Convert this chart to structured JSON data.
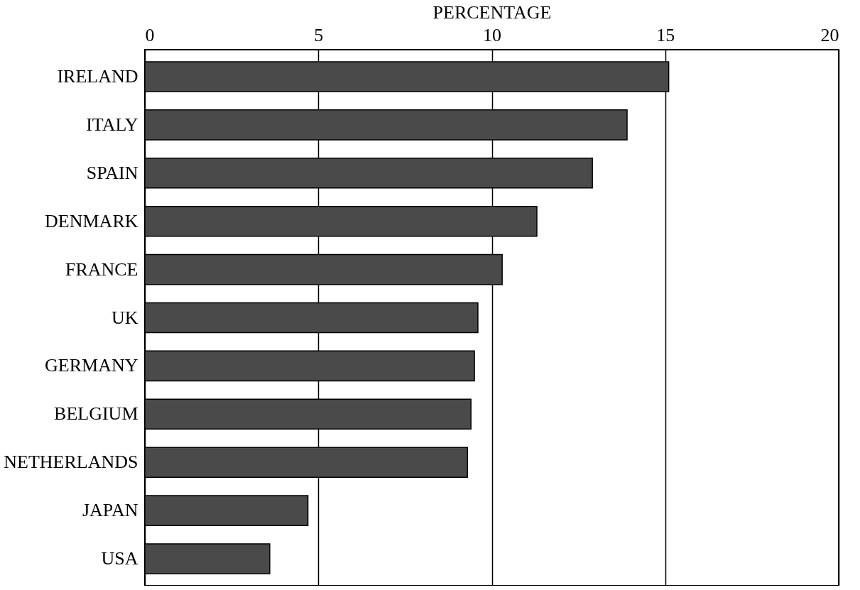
{
  "chart_data": {
    "type": "bar",
    "orientation": "horizontal",
    "xlabel": "PERCENTAGE",
    "categories": [
      "IRELAND",
      "ITALY",
      "SPAIN",
      "DENMARK",
      "FRANCE",
      "UK",
      "GERMANY",
      "BELGIUM",
      "NETHERLANDS",
      "JAPAN",
      "USA"
    ],
    "values": [
      15.1,
      13.9,
      12.9,
      11.3,
      10.3,
      9.6,
      9.5,
      9.4,
      9.3,
      4.7,
      3.6
    ],
    "color": "#4a4a4a",
    "xlim": [
      0,
      20
    ],
    "xticks": [
      0,
      5,
      10,
      15,
      20
    ],
    "grid": "x"
  }
}
